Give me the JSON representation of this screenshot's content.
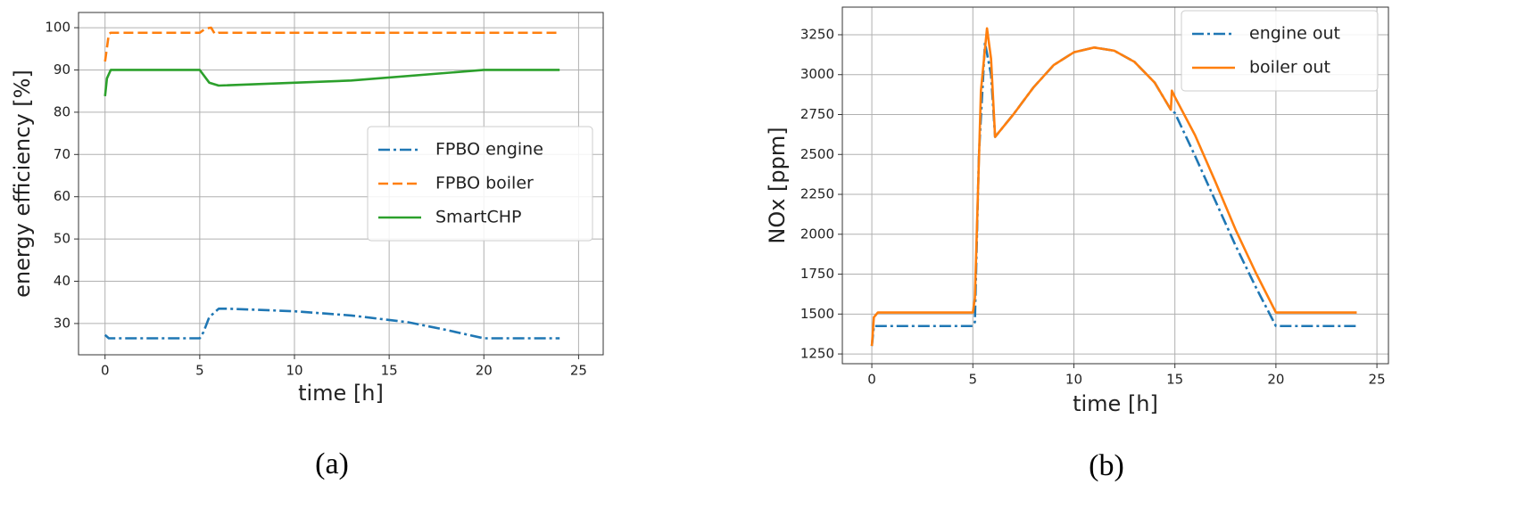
{
  "chart_data": [
    {
      "type": "line",
      "caption": "(a)",
      "xlabel": "time [h]",
      "ylabel": "energy efficiency [%]",
      "xlim": [
        -1.4,
        26.3
      ],
      "xticks": [
        0,
        5,
        10,
        15,
        20,
        25
      ],
      "ylim": [
        22.6,
        103.6
      ],
      "yticks": [
        30,
        40,
        50,
        60,
        70,
        80,
        90,
        100
      ],
      "grid": true,
      "legend": "center right",
      "series": [
        {
          "name": "FPBO engine",
          "color": "#1f77b4",
          "style": "dashdot",
          "x": [
            0,
            0.2,
            5,
            5.2,
            5.5,
            6,
            6.5,
            10,
            13,
            16,
            18,
            20,
            24
          ],
          "values": [
            27.3,
            26.5,
            26.5,
            28,
            31.5,
            33.5,
            33.5,
            32.9,
            31.9,
            30.3,
            28.5,
            26.5,
            26.5
          ]
        },
        {
          "name": "FPBO boiler",
          "color": "#ff7f0e",
          "style": "dashed",
          "x": [
            0,
            0.2,
            0.3,
            5,
            5.3,
            5.6,
            5.8,
            6,
            24
          ],
          "values": [
            92,
            98.5,
            98.8,
            98.8,
            99.8,
            100,
            98.5,
            98.8,
            98.8
          ]
        },
        {
          "name": "SmartCHP",
          "color": "#2ca02c",
          "style": "solid",
          "x": [
            0,
            0.1,
            0.3,
            5,
            5.5,
            6,
            13,
            20,
            24
          ],
          "values": [
            83.8,
            88,
            90,
            90,
            87,
            86.3,
            87.5,
            90,
            90
          ]
        }
      ]
    },
    {
      "type": "line",
      "caption": "(b)",
      "xlabel": "time [h]",
      "ylabel": "NOx [ppm]",
      "xlim": [
        -1.46,
        25.57
      ],
      "xticks": [
        0,
        5,
        10,
        15,
        20,
        25
      ],
      "ylim": [
        1189,
        3423
      ],
      "yticks": [
        1250,
        1500,
        1750,
        2000,
        2250,
        2500,
        2750,
        3000,
        3250
      ],
      "grid": true,
      "legend": "upper right",
      "series": [
        {
          "name": "engine out",
          "color": "#1f77b4",
          "style": "dashdot",
          "x": [
            0,
            0.1,
            5,
            5.1,
            5.3,
            5.6,
            5.9,
            6.1,
            7,
            8,
            9,
            10,
            11,
            12,
            13,
            14,
            14.8,
            15,
            16,
            17,
            18,
            19,
            20,
            24
          ],
          "values": [
            1300,
            1425,
            1425,
            1450,
            2500,
            3200,
            3000,
            2610,
            2750,
            2920,
            3060,
            3140,
            3170,
            3150,
            3080,
            2950,
            2780,
            2760,
            2490,
            2210,
            1930,
            1670,
            1425,
            1425
          ]
        },
        {
          "name": "boiler out",
          "color": "#ff7f0e",
          "style": "solid",
          "x": [
            0,
            0.1,
            0.3,
            5,
            5.1,
            5.4,
            5.7,
            5.9,
            6.1,
            7,
            8,
            9,
            10,
            11,
            12,
            13,
            14,
            14.8,
            14.85,
            15,
            16,
            17,
            18,
            19,
            20,
            24
          ],
          "values": [
            1300,
            1480,
            1510,
            1510,
            1600,
            2900,
            3290,
            3100,
            2610,
            2750,
            2920,
            3060,
            3140,
            3170,
            3150,
            3080,
            2950,
            2780,
            2900,
            2860,
            2620,
            2330,
            2030,
            1760,
            1510,
            1510
          ]
        }
      ]
    }
  ]
}
